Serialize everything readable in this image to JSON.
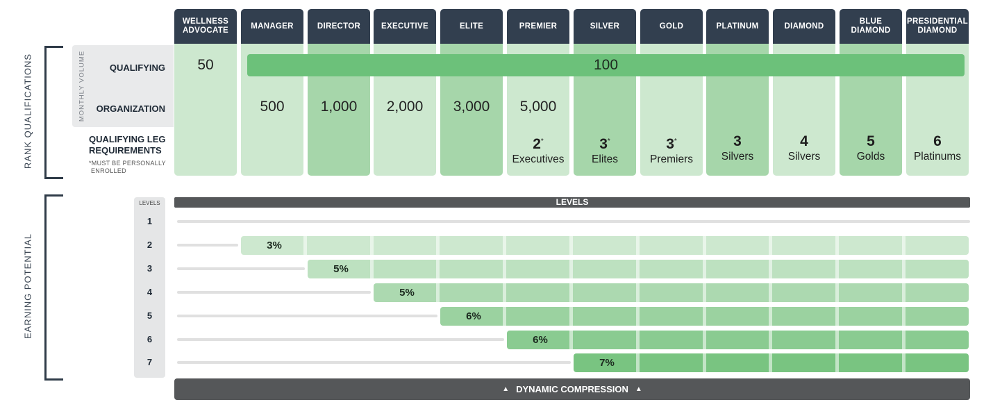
{
  "side_labels": {
    "rank_qualifications": "RANK QUALIFICATIONS",
    "earning_potential": "EARNING POTENTIAL"
  },
  "ranks": [
    "WELLNESS\nADVOCATE",
    "MANAGER",
    "DIRECTOR",
    "EXECUTIVE",
    "ELITE",
    "PREMIER",
    "SILVER",
    "GOLD",
    "PLATINUM",
    "DIAMOND",
    "BLUE\nDIAMOND",
    "PRESIDENTIAL\nDIAMOND"
  ],
  "colors": {
    "header": "#323f4f",
    "light": "#cde8cf",
    "medium": "#a6d6aa",
    "bar": "#6cc17a",
    "dark": "#555759"
  },
  "monthly_volume": {
    "label": "MONTHLY VOLUME",
    "qualifying_label": "QUALIFYING",
    "organization_label": "ORGANIZATION",
    "qualifying_first": "50",
    "qualifying_rest": "100",
    "organization": [
      "",
      "500",
      "1,000",
      "2,000",
      "3,000",
      "5,000",
      "",
      "",
      "",
      "",
      "",
      ""
    ]
  },
  "qualifying_leg": {
    "title_line1": "QUALIFYING LEG",
    "title_line2": "REQUIREMENTS",
    "note_line1": "*MUST BE PERSONALLY",
    "note_line2": "ENROLLED",
    "items": [
      {
        "n": "",
        "mark": "",
        "t": ""
      },
      {
        "n": "",
        "mark": "",
        "t": ""
      },
      {
        "n": "",
        "mark": "",
        "t": ""
      },
      {
        "n": "",
        "mark": "",
        "t": ""
      },
      {
        "n": "",
        "mark": "",
        "t": ""
      },
      {
        "n": "2",
        "mark": "*",
        "t": "Executives"
      },
      {
        "n": "3",
        "mark": "*",
        "t": "Elites"
      },
      {
        "n": "3",
        "mark": "*",
        "t": "Premiers"
      },
      {
        "n": "3",
        "mark": "",
        "t": "Silvers"
      },
      {
        "n": "4",
        "mark": "",
        "t": "Silvers"
      },
      {
        "n": "5",
        "mark": "",
        "t": "Golds"
      },
      {
        "n": "6",
        "mark": "",
        "t": "Platinums"
      }
    ]
  },
  "levels": {
    "column_title": "LEVELS",
    "bar_title": "LEVELS",
    "rows": [
      {
        "level": "1",
        "start_rank": null,
        "pct": ""
      },
      {
        "level": "2",
        "start_rank": 1,
        "pct": "3%"
      },
      {
        "level": "3",
        "start_rank": 2,
        "pct": "5%"
      },
      {
        "level": "4",
        "start_rank": 3,
        "pct": "5%"
      },
      {
        "level": "5",
        "start_rank": 4,
        "pct": "6%"
      },
      {
        "level": "6",
        "start_rank": 5,
        "pct": "6%"
      },
      {
        "level": "7",
        "start_rank": 6,
        "pct": "7%"
      }
    ],
    "row_colors": [
      "#cde8cf",
      "#cde8cf",
      "#bde1c0",
      "#acd9b0",
      "#9bd2a0",
      "#8acb91",
      "#79c481"
    ]
  },
  "footer": {
    "label": "DYNAMIC COMPRESSION",
    "arrow": "▲"
  }
}
